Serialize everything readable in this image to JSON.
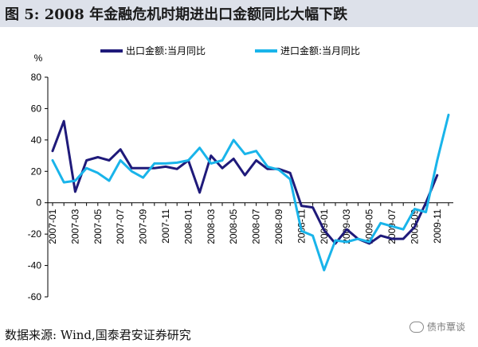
{
  "title": "图 5:  2008 年金融危机时期进出口金额同比大幅下跌",
  "source": "数据来源:  Wind,国泰君安证券研究",
  "watermark": "债市覃谈",
  "chart_data": {
    "type": "line",
    "ylabel": "%",
    "ylim": [
      -60,
      80
    ],
    "yticks": [
      80,
      60,
      40,
      20,
      0,
      -20,
      -40,
      -60
    ],
    "x": [
      "2007-01",
      "2007-02",
      "2007-03",
      "2007-04",
      "2007-05",
      "2007-06",
      "2007-07",
      "2007-08",
      "2007-09",
      "2007-10",
      "2007-11",
      "2007-12",
      "2008-01",
      "2008-02",
      "2008-03",
      "2008-04",
      "2008-05",
      "2008-06",
      "2008-07",
      "2008-08",
      "2008-09",
      "2008-10",
      "2008-11",
      "2008-12",
      "2009-01",
      "2009-02",
      "2009-03",
      "2009-04",
      "2009-05",
      "2009-06",
      "2009-07",
      "2009-08",
      "2009-09",
      "2009-10",
      "2009-11",
      "2009-12"
    ],
    "xtick_labels": [
      "2007-01",
      "2007-03",
      "2007-05",
      "2007-07",
      "2007-09",
      "2007-11",
      "2008-01",
      "2008-03",
      "2008-05",
      "2008-07",
      "2008-09",
      "2008-11",
      "2009-01",
      "2009-03",
      "2009-05",
      "2009-07",
      "2009-09",
      "2009-11"
    ],
    "grid": false,
    "legend_position": "top",
    "series": [
      {
        "name": "出口金额:当月同比",
        "color": "#1f1a7a",
        "values": [
          33,
          52,
          7,
          27,
          29,
          27,
          34,
          22,
          22,
          22,
          23,
          21.5,
          27,
          6.5,
          30,
          22,
          28,
          17.5,
          27,
          21.5,
          21.5,
          19,
          -2,
          -3,
          -17.5,
          -26,
          -17,
          -23,
          -26,
          -21,
          -23,
          -23,
          -15.5,
          0,
          17.5,
          null
        ]
      },
      {
        "name": "进口金额:当月同比",
        "color": "#19b4ea",
        "values": [
          27,
          13,
          14,
          22,
          19,
          14,
          27,
          20,
          16,
          25,
          25,
          25.5,
          27,
          35,
          25,
          27,
          40,
          31,
          33,
          23,
          21,
          15,
          -18,
          -21,
          -43,
          -24,
          -25,
          -23,
          -25,
          -13,
          -15,
          -17,
          -4,
          -6,
          27,
          56
        ]
      }
    ]
  }
}
